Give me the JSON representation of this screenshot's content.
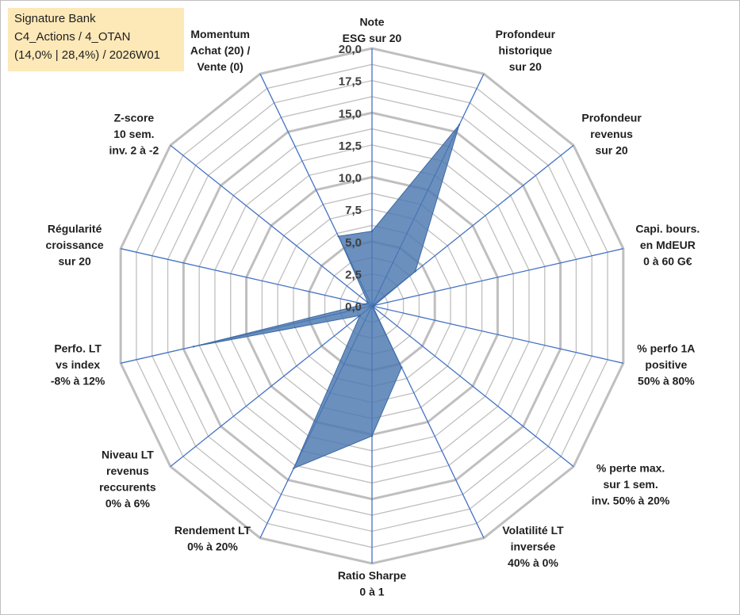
{
  "header": {
    "line1": "Signature Bank",
    "line2": "C4_Actions / 4_OTAN",
    "line3": "(14,0% | 28,4%) / 2026W01"
  },
  "chart_data": {
    "type": "radar",
    "title": "Signature Bank",
    "range": [
      0,
      20
    ],
    "ticks": [
      "0,0",
      "2,5",
      "5,0",
      "7,5",
      "10,0",
      "12,5",
      "15,0",
      "17,5",
      "20,0"
    ],
    "tick_values": [
      0,
      2.5,
      5,
      7.5,
      10,
      12.5,
      15,
      17.5,
      20
    ],
    "colors": {
      "fill": "#4a78b0",
      "grid": "#bfbfbf",
      "spoke": "#4472c4"
    },
    "axes": [
      {
        "lines": [
          "Note",
          "ESG sur 20"
        ],
        "value": 5.8
      },
      {
        "lines": [
          "Profondeur",
          "historique",
          "sur 20"
        ],
        "value": 15.6
      },
      {
        "lines": [
          "Profondeur",
          "revenus",
          "sur 20"
        ],
        "value": 4.3
      },
      {
        "lines": [
          "Capi. bours.",
          "en MdEUR",
          "0 à 60 G€"
        ],
        "value": 0.2
      },
      {
        "lines": [
          "% perfo 1A",
          "positive",
          "50% à 80%"
        ],
        "value": 0.1
      },
      {
        "lines": [
          "% perte max.",
          "sur 1 sem.",
          "inv. 50% à 20%"
        ],
        "value": 0.1
      },
      {
        "lines": [
          "Volatilité LT",
          "inversée",
          "40% à 0%"
        ],
        "value": 5.3
      },
      {
        "lines": [
          "Ratio Sharpe",
          "0 à 1"
        ],
        "value": 10.1
      },
      {
        "lines": [
          "Rendement LT",
          "0% à 20%"
        ],
        "value": 14.0
      },
      {
        "lines": [
          "Niveau LT",
          "revenus",
          "reccurents",
          "0% à 6%"
        ],
        "value": 1.2
      },
      {
        "lines": [
          "Perfo. LT",
          "vs index",
          "-8% à 12%"
        ],
        "value": 14.2
      },
      {
        "lines": [
          "Régularité",
          "croissance",
          "sur 20"
        ],
        "value": 0.6
      },
      {
        "lines": [
          "Z-score",
          "10 sem.",
          "inv. 2 à -2"
        ],
        "value": 0.4
      },
      {
        "lines": [
          "Momentum",
          "Achat (20) /",
          "Vente (0)"
        ],
        "value": 6.0
      }
    ]
  }
}
